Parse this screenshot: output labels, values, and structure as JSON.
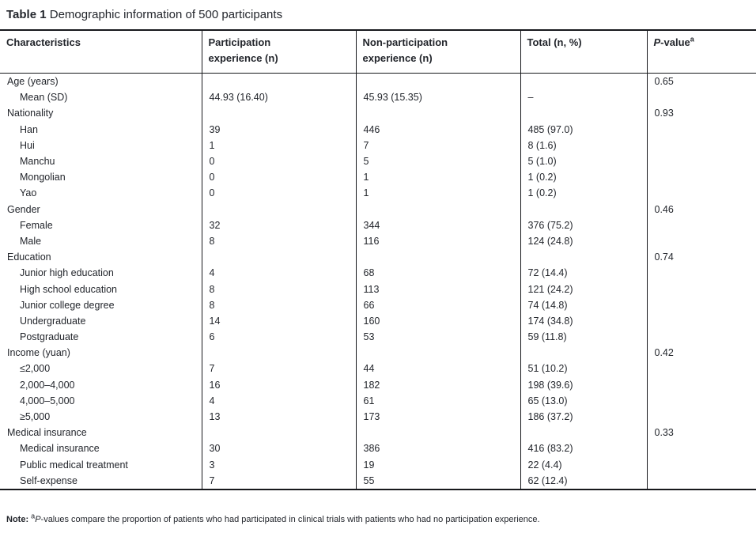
{
  "title": {
    "label": "Table 1",
    "text": " Demographic information of 500 participants"
  },
  "table": {
    "header": {
      "characteristics": "Characteristics",
      "participation": {
        "line1": "Participation",
        "line2": "experience (n)"
      },
      "non_participation": {
        "line1": "Non-participation",
        "line2": "experience (n)"
      },
      "total": "Total (n, %)",
      "p_value": {
        "p": "P",
        "rest": "-value",
        "sup": "a"
      }
    },
    "rows": [
      {
        "label": "Age (years)",
        "indent": false,
        "part": "",
        "nonpart": "",
        "total": "",
        "p": "0.65"
      },
      {
        "label": "Mean (SD)",
        "indent": true,
        "part": "44.93 (16.40)",
        "nonpart": "45.93 (15.35)",
        "total": "–",
        "p": ""
      },
      {
        "label": "Nationality",
        "indent": false,
        "part": "",
        "nonpart": "",
        "total": "",
        "p": "0.93"
      },
      {
        "label": "Han",
        "indent": true,
        "part": "39",
        "nonpart": "446",
        "total": "485 (97.0)",
        "p": ""
      },
      {
        "label": "Hui",
        "indent": true,
        "part": "1",
        "nonpart": "7",
        "total": "8 (1.6)",
        "p": ""
      },
      {
        "label": "Manchu",
        "indent": true,
        "part": "0",
        "nonpart": "5",
        "total": "5 (1.0)",
        "p": ""
      },
      {
        "label": "Mongolian",
        "indent": true,
        "part": "0",
        "nonpart": "1",
        "total": "1 (0.2)",
        "p": ""
      },
      {
        "label": "Yao",
        "indent": true,
        "part": "0",
        "nonpart": "1",
        "total": "1 (0.2)",
        "p": ""
      },
      {
        "label": "Gender",
        "indent": false,
        "part": "",
        "nonpart": "",
        "total": "",
        "p": "0.46"
      },
      {
        "label": "Female",
        "indent": true,
        "part": "32",
        "nonpart": "344",
        "total": "376 (75.2)",
        "p": ""
      },
      {
        "label": "Male",
        "indent": true,
        "part": "8",
        "nonpart": "116",
        "total": "124 (24.8)",
        "p": ""
      },
      {
        "label": "Education",
        "indent": false,
        "part": "",
        "nonpart": "",
        "total": "",
        "p": "0.74"
      },
      {
        "label": "Junior high education",
        "indent": true,
        "part": "4",
        "nonpart": "68",
        "total": "72 (14.4)",
        "p": ""
      },
      {
        "label": "High school education",
        "indent": true,
        "part": "8",
        "nonpart": "113",
        "total": "121 (24.2)",
        "p": ""
      },
      {
        "label": "Junior college degree",
        "indent": true,
        "part": "8",
        "nonpart": "66",
        "total": "74 (14.8)",
        "p": ""
      },
      {
        "label": "Undergraduate",
        "indent": true,
        "part": "14",
        "nonpart": "160",
        "total": "174 (34.8)",
        "p": ""
      },
      {
        "label": "Postgraduate",
        "indent": true,
        "part": "6",
        "nonpart": "53",
        "total": "59 (11.8)",
        "p": ""
      },
      {
        "label": "Income (yuan)",
        "indent": false,
        "part": "",
        "nonpart": "",
        "total": "",
        "p": "0.42"
      },
      {
        "label": "≤2,000",
        "indent": true,
        "part": "7",
        "nonpart": "44",
        "total": "51 (10.2)",
        "p": ""
      },
      {
        "label": "2,000–4,000",
        "indent": true,
        "part": "16",
        "nonpart": "182",
        "total": "198 (39.6)",
        "p": ""
      },
      {
        "label": "4,000–5,000",
        "indent": true,
        "part": "4",
        "nonpart": "61",
        "total": "65 (13.0)",
        "p": ""
      },
      {
        "label": "≥5,000",
        "indent": true,
        "part": "13",
        "nonpart": "173",
        "total": "186 (37.2)",
        "p": ""
      },
      {
        "label": "Medical insurance",
        "indent": false,
        "part": "",
        "nonpart": "",
        "total": "",
        "p": "0.33"
      },
      {
        "label": "Medical insurance",
        "indent": true,
        "part": "30",
        "nonpart": "386",
        "total": "416 (83.2)",
        "p": ""
      },
      {
        "label": "Public medical treatment",
        "indent": true,
        "part": "3",
        "nonpart": "19",
        "total": "22 (4.4)",
        "p": ""
      },
      {
        "label": "Self-expense",
        "indent": true,
        "part": "7",
        "nonpart": "55",
        "total": "62 (12.4)",
        "p": ""
      }
    ]
  },
  "note": {
    "label": "Note:",
    "sup": "a",
    "p": "P",
    "text": "-values compare the proportion of patients who had participated in clinical trials with patients who had no participation experience."
  },
  "colors": {
    "text": "#23262c",
    "rule": "#17181c",
    "background": "#ffffff"
  }
}
